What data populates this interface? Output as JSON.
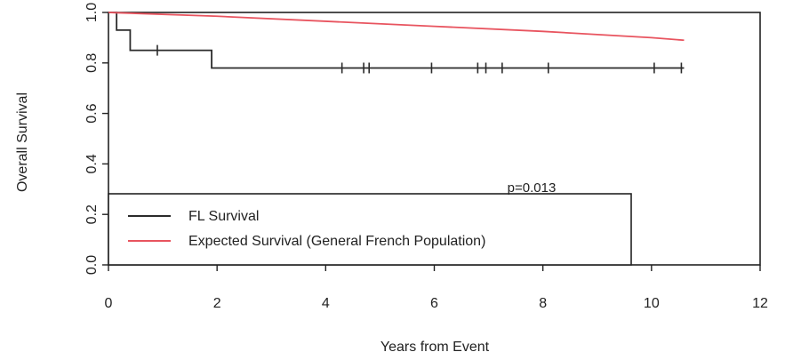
{
  "chart_data": {
    "type": "line",
    "title": "",
    "xlabel": "Years from Event",
    "ylabel": "Overall Survival",
    "xlim": [
      0,
      12
    ],
    "ylim": [
      0,
      1.0
    ],
    "x_ticks": [
      0,
      2,
      4,
      6,
      8,
      10,
      12
    ],
    "x_tick_labels": [
      "0",
      "2",
      "4",
      "6",
      "8",
      "10",
      "12"
    ],
    "y_ticks": [
      0.0,
      0.2,
      0.4,
      0.6,
      0.8,
      1.0
    ],
    "y_tick_labels": [
      "0.0",
      "0.2",
      "0.4",
      "0.6",
      "0.8",
      "1.0"
    ],
    "grid": false,
    "legend_position": "bottom-left",
    "annotation": "p=0.013",
    "series": [
      {
        "name": "FL Survival",
        "color": "#2b2b2b",
        "step": true,
        "x": [
          0,
          0.15,
          0.4,
          1.9,
          10.6
        ],
        "y": [
          1.0,
          0.93,
          0.85,
          0.78,
          0.78
        ],
        "censor_marks": [
          {
            "x": 0.9,
            "y": 0.85
          },
          {
            "x": 4.3,
            "y": 0.78
          },
          {
            "x": 4.7,
            "y": 0.78
          },
          {
            "x": 4.8,
            "y": 0.78
          },
          {
            "x": 5.95,
            "y": 0.78
          },
          {
            "x": 6.8,
            "y": 0.78
          },
          {
            "x": 6.95,
            "y": 0.78
          },
          {
            "x": 7.25,
            "y": 0.78
          },
          {
            "x": 8.1,
            "y": 0.78
          },
          {
            "x": 10.05,
            "y": 0.78
          },
          {
            "x": 10.55,
            "y": 0.78
          }
        ]
      },
      {
        "name": "Expected Survival (General French Population)",
        "color": "#e8545f",
        "step": false,
        "x": [
          0,
          2,
          4,
          6,
          8,
          10,
          10.6
        ],
        "y": [
          1.0,
          0.985,
          0.965,
          0.945,
          0.925,
          0.9,
          0.89
        ]
      }
    ]
  }
}
